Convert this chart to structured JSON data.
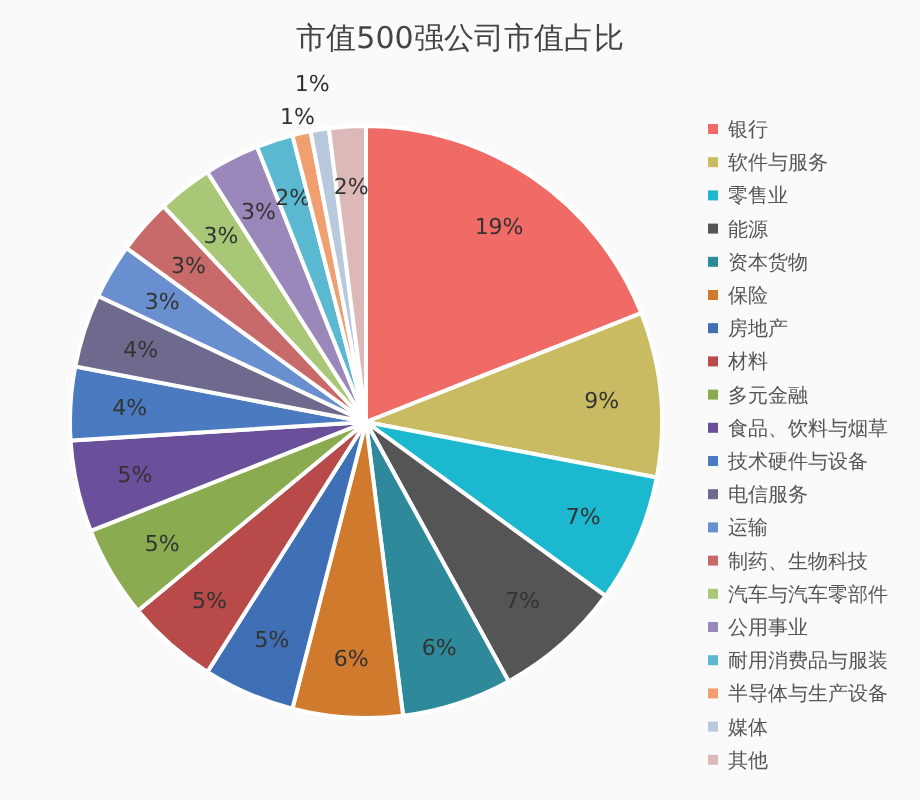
{
  "chart_data": {
    "type": "pie",
    "title": "市值500强公司市值占比",
    "categories": [
      "银行",
      "软件与服务",
      "零售业",
      "能源",
      "资本货物",
      "保险",
      "房地产",
      "材料",
      "多元金融",
      "食品、饮料与烟草",
      "技术硬件与设备",
      "电信服务",
      "运输",
      "制药、生物科技",
      "汽车与汽车零部件",
      "公用事业",
      "耐用消费品与服装",
      "半导体与生产设备",
      "媒体",
      "其他"
    ],
    "values": [
      19,
      9,
      7,
      7,
      6,
      6,
      5,
      5,
      5,
      5,
      4,
      4,
      3,
      3,
      3,
      3,
      2,
      1,
      1,
      2
    ],
    "value_labels": [
      "19%",
      "9%",
      "7%",
      "7%",
      "6%",
      "6%",
      "5%",
      "5%",
      "5%",
      "5%",
      "4%",
      "4%",
      "3%",
      "3%",
      "3%",
      "3%",
      "2%",
      "1%",
      "1%",
      "2%"
    ],
    "colors": [
      "#f06a66",
      "#c9bb62",
      "#1bb8d0",
      "#555555",
      "#2e8a9a",
      "#d07a2e",
      "#3f6fb5",
      "#b84a4a",
      "#8aab50",
      "#6a4f9a",
      "#4a7ac0",
      "#6e6a8e",
      "#6a8fd0",
      "#c96a6a",
      "#a8c878",
      "#9a88bb",
      "#5ab8d0",
      "#f0a070",
      "#b8c8dd",
      "#ddb8b8"
    ],
    "legend": "right"
  }
}
